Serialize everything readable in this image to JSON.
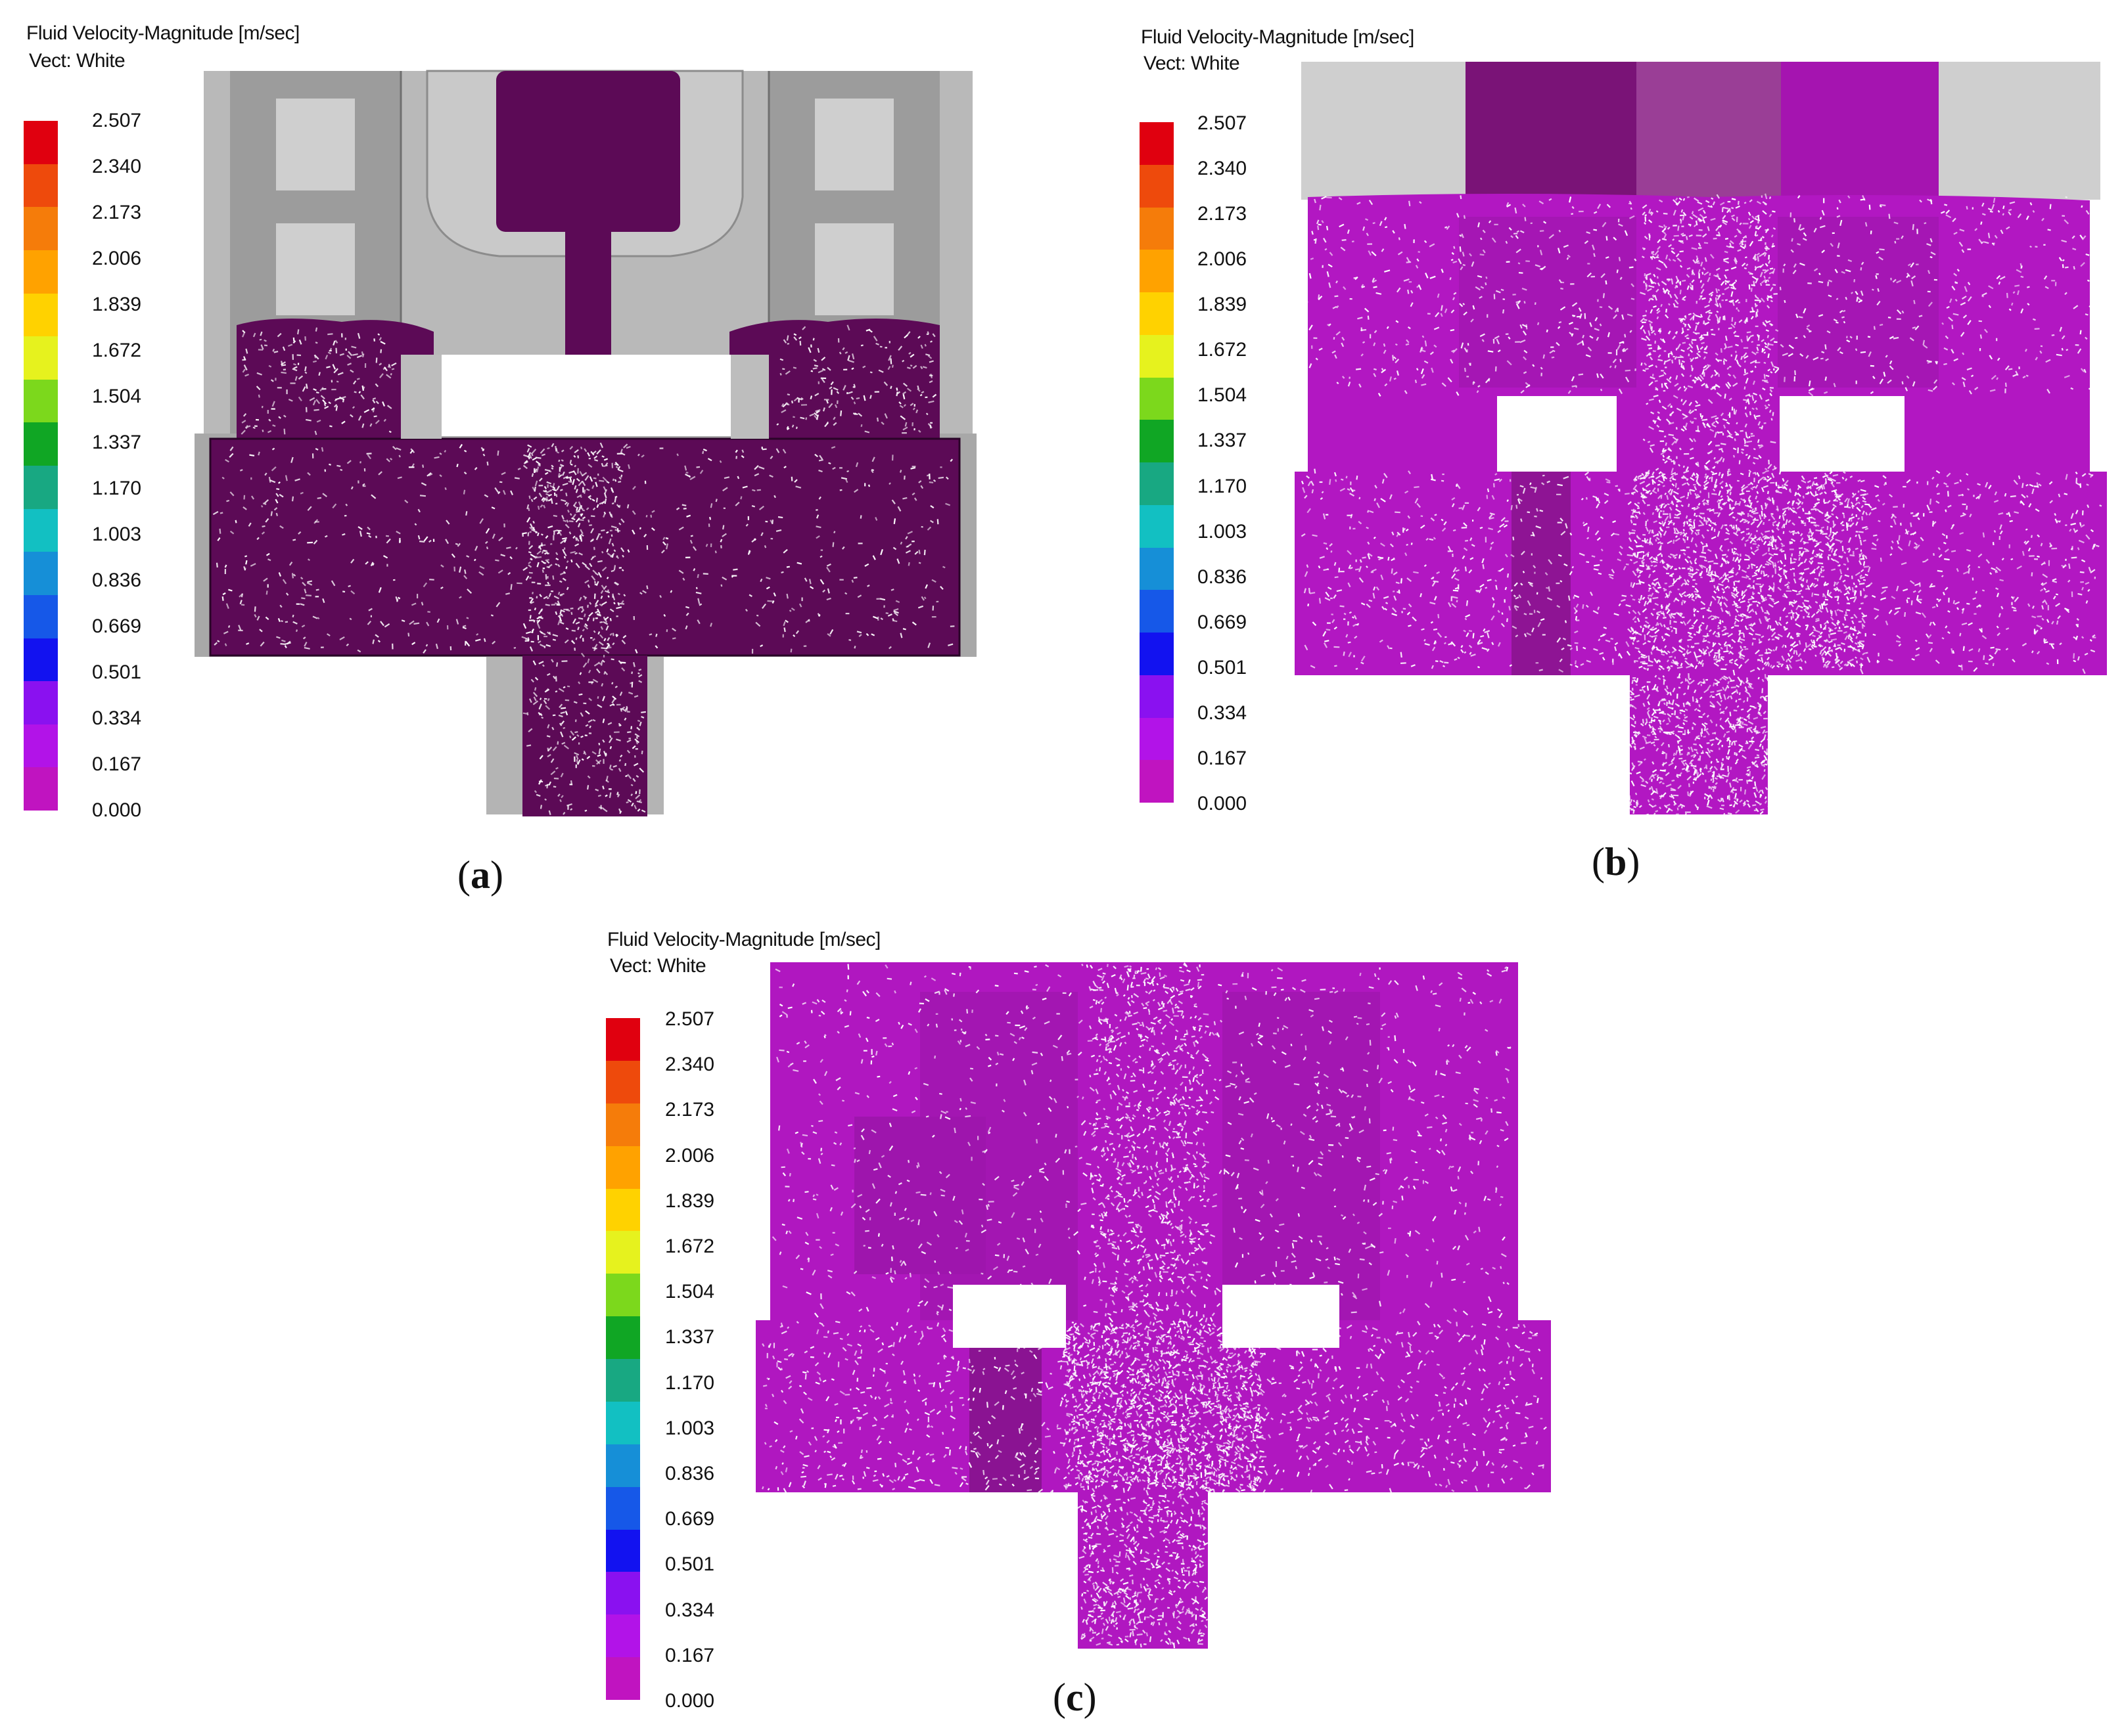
{
  "legend": {
    "title_line1": "Fluid Velocity-Magnitude [m/sec]",
    "title_line2": "Vect: White",
    "ticks": [
      "2.507",
      "2.340",
      "2.173",
      "2.006",
      "1.839",
      "1.672",
      "1.504",
      "1.337",
      "1.170",
      "1.003",
      "0.836",
      "0.669",
      "0.501",
      "0.334",
      "0.167",
      "0.000"
    ],
    "colors": [
      "#e0000f",
      "#ee4a0c",
      "#f57c0a",
      "#ffa200",
      "#ffd200",
      "#e6f21e",
      "#7cd81c",
      "#10a624",
      "#18a882",
      "#12c0c2",
      "#168fd7",
      "#1658e8",
      "#1212f0",
      "#8a11f0",
      "#b213e8",
      "#c014c0"
    ]
  },
  "panels": [
    {
      "caption_open": "(",
      "caption_letter": "a",
      "caption_close": ")",
      "fluid_color": "#5c0a56"
    },
    {
      "caption_open": "(",
      "caption_letter": "b",
      "caption_close": ")",
      "fluid_color": "#b217c2"
    },
    {
      "caption_open": "(",
      "caption_letter": "c",
      "caption_close": ")",
      "fluid_color": "#b017c0"
    }
  ]
}
